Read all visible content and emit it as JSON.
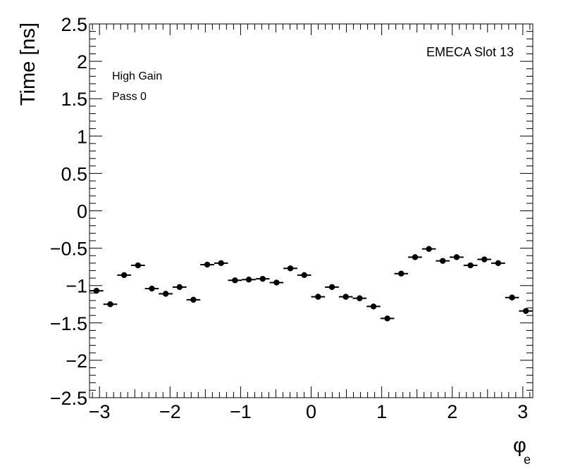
{
  "chart_data": {
    "type": "scatter",
    "title": "",
    "xlabel": "φ",
    "xlabel_subscript": "e",
    "ylabel": "Time [ns]",
    "xlim": [
      -3.1416,
      3.1416
    ],
    "ylim": [
      -2.5,
      2.5
    ],
    "x_bin_width": 0.19635,
    "grid": false,
    "annotations": {
      "top_right": "EMECA Slot 13",
      "line1": "High Gain",
      "line2": "Pass 0"
    },
    "x_ticks": [
      {
        "value": -3,
        "label": "−3"
      },
      {
        "value": -2,
        "label": "−2"
      },
      {
        "value": -1,
        "label": "−1"
      },
      {
        "value": 0,
        "label": "0"
      },
      {
        "value": 1,
        "label": "1"
      },
      {
        "value": 2,
        "label": "2"
      },
      {
        "value": 3,
        "label": "3"
      }
    ],
    "y_ticks": [
      {
        "value": 2.5,
        "label": "2.5"
      },
      {
        "value": 2,
        "label": "2"
      },
      {
        "value": 1.5,
        "label": "1.5"
      },
      {
        "value": 1,
        "label": "1"
      },
      {
        "value": 0.5,
        "label": "0.5"
      },
      {
        "value": 0,
        "label": "0"
      },
      {
        "value": -0.5,
        "label": "−0.5"
      },
      {
        "value": -1,
        "label": "−1"
      },
      {
        "value": -1.5,
        "label": "−1.5"
      },
      {
        "value": -2,
        "label": "−2"
      },
      {
        "value": -2.5,
        "label": "−2.5"
      }
    ],
    "series": [
      {
        "x": [
          -3.0434,
          -2.8471,
          -2.6507,
          -2.4544,
          -2.258,
          -2.0617,
          -1.8653,
          -1.669,
          -1.4726,
          -1.2763,
          -1.0799,
          -0.8836,
          -0.6872,
          -0.4909,
          -0.2945,
          -0.0982,
          0.0982,
          0.2945,
          0.4909,
          0.6872,
          0.8836,
          1.0799,
          1.2763,
          1.4726,
          1.669,
          1.8653,
          2.0617,
          2.258,
          2.4544,
          2.6507,
          2.8471,
          3.0434
        ],
        "y": [
          -1.07,
          -1.25,
          -0.86,
          -0.73,
          -1.04,
          -1.11,
          -1.02,
          -1.19,
          -0.72,
          -0.7,
          -0.93,
          -0.92,
          -0.91,
          -0.96,
          -0.77,
          -0.86,
          -1.15,
          -1.02,
          -1.15,
          -1.17,
          -1.28,
          -1.44,
          -0.84,
          -0.62,
          -0.51,
          -0.67,
          -0.62,
          -0.73,
          -0.65,
          -0.7,
          -1.16,
          -1.34
        ]
      }
    ]
  }
}
